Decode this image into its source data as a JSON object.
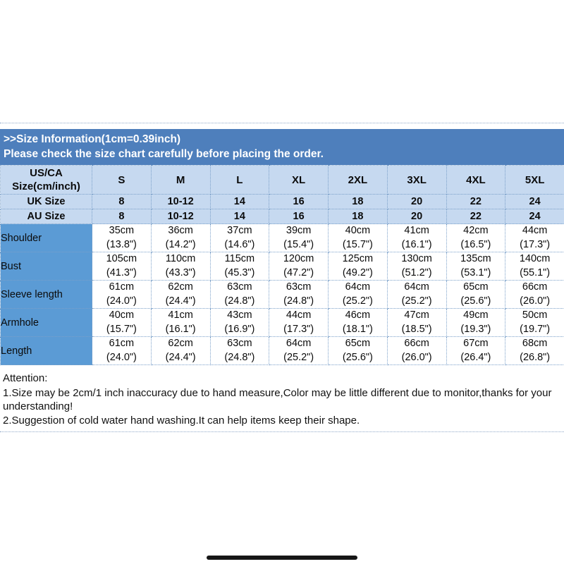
{
  "header": {
    "title": ">>Size Information(1cm=0.39inch)",
    "subtitle": "Please check the size chart carefully before placing the order.",
    "background": "#4e7fbc",
    "text_color": "#ffffff"
  },
  "size_chart": {
    "corner_label": "US/CA\nSize(cm/inch)",
    "columns": [
      "S",
      "M",
      "L",
      "XL",
      "2XL",
      "3XL",
      "4XL",
      "5XL"
    ],
    "size_rows": [
      {
        "label": "UK Size",
        "values": [
          "8",
          "10-12",
          "14",
          "16",
          "18",
          "20",
          "22",
          "24"
        ]
      },
      {
        "label": "AU Size",
        "values": [
          "8",
          "10-12",
          "14",
          "16",
          "18",
          "20",
          "22",
          "24"
        ]
      }
    ],
    "measurement_rows": [
      {
        "label": "Shoulder",
        "values": [
          "35cm\n(13.8\")",
          "36cm\n(14.2\")",
          "37cm\n(14.6\")",
          "39cm\n(15.4\")",
          "40cm\n(15.7\")",
          "41cm\n(16.1\")",
          "42cm\n(16.5\")",
          "44cm\n(17.3\")"
        ]
      },
      {
        "label": "Bust",
        "values": [
          "105cm\n(41.3\")",
          "110cm\n(43.3\")",
          "115cm\n(45.3\")",
          "120cm\n(47.2\")",
          "125cm\n(49.2\")",
          "130cm\n(51.2\")",
          "135cm\n(53.1\")",
          "140cm\n(55.1\")"
        ]
      },
      {
        "label": "Sleeve length",
        "values": [
          "61cm\n(24.0\")",
          "62cm\n(24.4\")",
          "63cm\n(24.8\")",
          "63cm\n(24.8\")",
          "64cm\n(25.2\")",
          "64cm\n(25.2\")",
          "65cm\n(25.6\")",
          "66cm\n(26.0\")"
        ]
      },
      {
        "label": "Armhole",
        "values": [
          "40cm\n(15.7\")",
          "41cm\n(16.1\")",
          "43cm\n(16.9\")",
          "44cm\n(17.3\")",
          "46cm\n(18.1\")",
          "47cm\n(18.5\")",
          "49cm\n(19.3\")",
          "50cm\n(19.7\")"
        ]
      },
      {
        "label": "Length",
        "values": [
          "61cm\n(24.0\")",
          "62cm\n(24.4\")",
          "63cm\n(24.8\")",
          "64cm\n(25.2\")",
          "65cm\n(25.6\")",
          "66cm\n(26.0\")",
          "67cm\n(26.4\")",
          "68cm\n(26.8\")"
        ]
      }
    ],
    "colors": {
      "header_fill": "#c6d9f0",
      "label_fill": "#5b9bd5",
      "grid_dotted": "#7ba0c9"
    }
  },
  "attention": {
    "heading": "Attention:",
    "lines": [
      "1.Size may be 2cm/1 inch inaccuracy due to hand measure,Color may be little different due to monitor,thanks for your understanding!",
      "2.Suggestion of cold water hand washing.It can help items keep their shape."
    ]
  }
}
